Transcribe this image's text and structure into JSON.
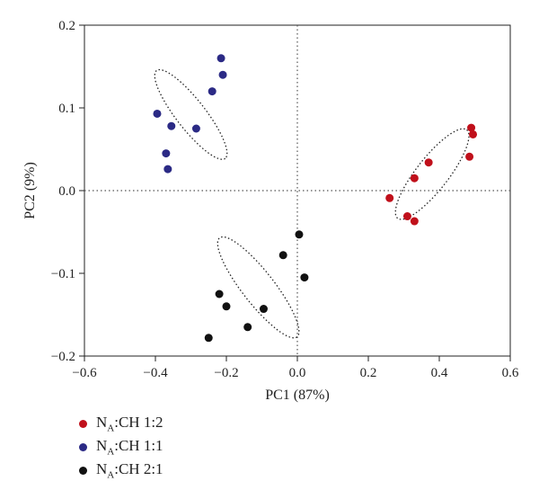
{
  "chart_data": {
    "type": "scatter",
    "xlabel": "PC1 (87%)",
    "ylabel": "PC2 (9%)",
    "xlim": [
      -0.6,
      0.6
    ],
    "ylim": [
      -0.2,
      0.2
    ],
    "xticks": [
      "−0.6",
      "−0.4",
      "−0.2",
      "0.0",
      "0.2",
      "0.4",
      "0.6"
    ],
    "yticks": [
      "−0.2",
      "−0.1",
      "0.0",
      "0.1",
      "0.2"
    ],
    "xtick_values": [
      -0.6,
      -0.4,
      -0.2,
      0.0,
      0.2,
      0.4,
      0.6
    ],
    "ytick_values": [
      -0.2,
      -0.1,
      0.0,
      0.1,
      0.2
    ],
    "grid": false,
    "reference_lines": "dotted lines at x=0 and y=0",
    "series": [
      {
        "name": "NA:CH 1:2",
        "color": "#c0101b",
        "points": [
          [
            0.49,
            0.076
          ],
          [
            0.495,
            0.068
          ],
          [
            0.485,
            0.041
          ],
          [
            0.37,
            0.034
          ],
          [
            0.33,
            0.015
          ],
          [
            0.26,
            -0.009
          ],
          [
            0.31,
            -0.031
          ],
          [
            0.33,
            -0.037
          ]
        ]
      },
      {
        "name": "NA:CH 1:1",
        "color": "#2b2a85",
        "points": [
          [
            -0.215,
            0.16
          ],
          [
            -0.21,
            0.14
          ],
          [
            -0.24,
            0.12
          ],
          [
            -0.395,
            0.093
          ],
          [
            -0.355,
            0.078
          ],
          [
            -0.285,
            0.075
          ],
          [
            -0.37,
            0.045
          ],
          [
            -0.365,
            0.026
          ]
        ]
      },
      {
        "name": "NA:CH 2:1",
        "color": "#111111",
        "points": [
          [
            0.005,
            -0.053
          ],
          [
            -0.04,
            -0.078
          ],
          [
            0.02,
            -0.105
          ],
          [
            -0.22,
            -0.125
          ],
          [
            -0.2,
            -0.14
          ],
          [
            -0.095,
            -0.143
          ],
          [
            -0.14,
            -0.165
          ],
          [
            -0.25,
            -0.178
          ]
        ]
      }
    ],
    "ellipses": [
      {
        "cx": 0.38,
        "cy": 0.02,
        "rx": 0.158,
        "ry": 0.045,
        "angle": 52
      },
      {
        "cx": -0.3,
        "cy": 0.092,
        "rx": 0.157,
        "ry": 0.041,
        "angle": -52
      },
      {
        "cx": -0.11,
        "cy": -0.117,
        "rx": 0.177,
        "ry": 0.045,
        "angle": -52
      }
    ]
  },
  "legend": {
    "items": [
      {
        "sub_text": "A",
        "prefix": "N",
        "suffix": ":CH 1:2",
        "color": "#c0101b"
      },
      {
        "sub_text": "A",
        "prefix": "N",
        "suffix": ":CH 1:1",
        "color": "#2b2a85"
      },
      {
        "sub_text": "A",
        "prefix": "N",
        "suffix": ":CH 2:1",
        "color": "#111111"
      }
    ]
  }
}
